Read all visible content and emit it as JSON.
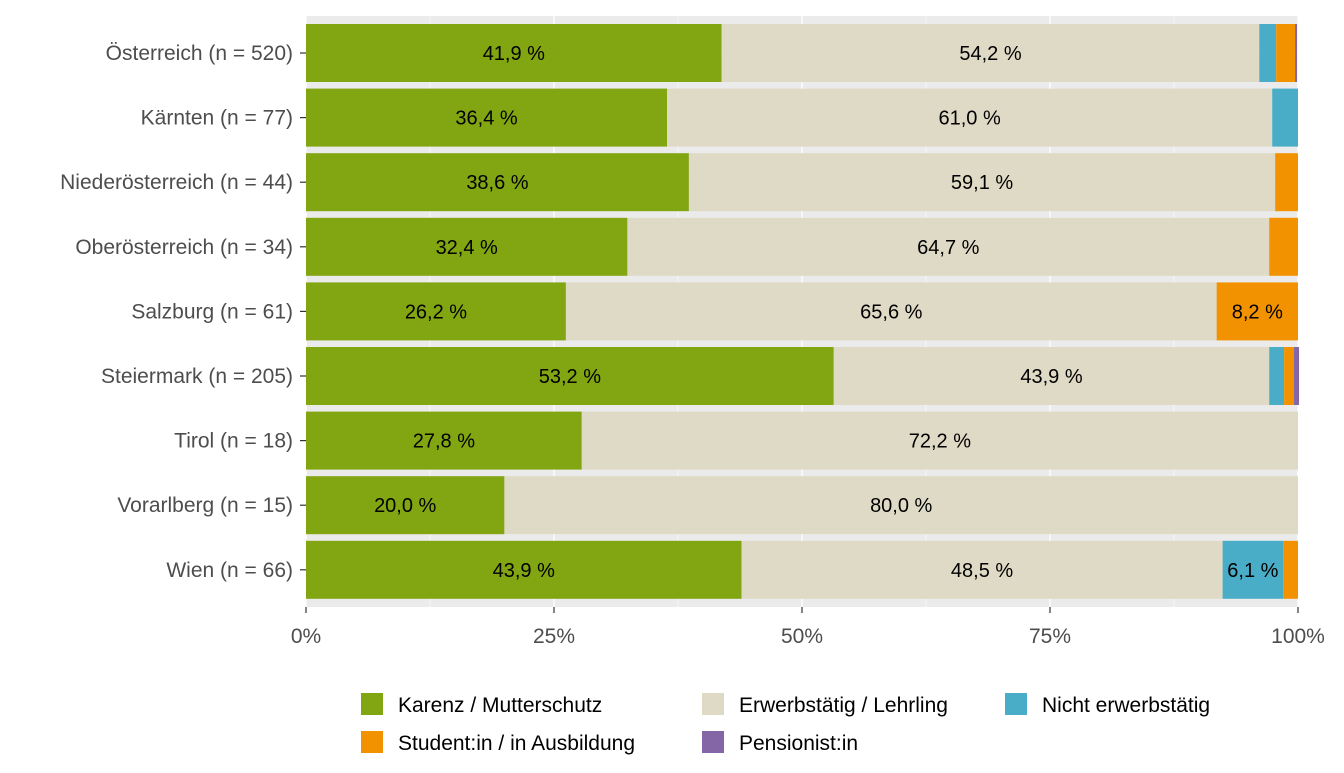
{
  "chart_data": {
    "type": "bar",
    "orientation": "horizontal",
    "stacked": true,
    "title": "",
    "xlabel": "",
    "ylabel": "",
    "xlim": [
      0,
      100
    ],
    "x_ticks": [
      "0%",
      "25%",
      "50%",
      "75%",
      "100%"
    ],
    "grid": true,
    "legend_position": "bottom",
    "categories": [
      "Österreich (n = 520)",
      "Kärnten (n = 77)",
      "Niederösterreich (n = 44)",
      "Oberösterreich (n = 34)",
      "Salzburg (n = 61)",
      "Steiermark (n = 205)",
      "Tirol (n = 18)",
      "Vorarlberg (n = 15)",
      "Wien (n = 66)"
    ],
    "series": [
      {
        "name": "Karenz / Mutterschutz",
        "color": "#82a512",
        "values": [
          41.9,
          36.4,
          38.6,
          32.4,
          26.2,
          53.2,
          27.8,
          20.0,
          43.9
        ],
        "labels": [
          "41,9 %",
          "36,4 %",
          "38,6 %",
          "32,4 %",
          "26,2 %",
          "53,2 %",
          "27,8 %",
          "20,0 %",
          "43,9 %"
        ]
      },
      {
        "name": "Erwerbstätig / Lehrling",
        "color": "#dedac5",
        "values": [
          54.2,
          61.0,
          59.1,
          64.7,
          65.6,
          43.9,
          72.2,
          80.0,
          48.5
        ],
        "labels": [
          "54,2 %",
          "61,0 %",
          "59,1 %",
          "64,7 %",
          "65,6 %",
          "43,9 %",
          "72,2 %",
          "80,0 %",
          "48,5 %"
        ]
      },
      {
        "name": "Nicht erwerbstätig",
        "color": "#4aadc7",
        "values": [
          1.7,
          2.6,
          0.0,
          0.0,
          0.0,
          1.5,
          0.0,
          0.0,
          6.1
        ],
        "labels": [
          "",
          "",
          "",
          "",
          "",
          "",
          "",
          "",
          "6,1 %"
        ]
      },
      {
        "name": "Student:in / in Ausbildung",
        "color": "#f39200",
        "values": [
          1.9,
          0.0,
          2.3,
          2.9,
          8.2,
          1.0,
          0.0,
          0.0,
          1.5
        ],
        "labels": [
          "",
          "",
          "",
          "",
          "8,2 %",
          "",
          "",
          "",
          ""
        ]
      },
      {
        "name": "Pensionist:in",
        "color": "#8466a6",
        "values": [
          0.2,
          0.0,
          0.0,
          0.0,
          0.0,
          0.5,
          0.0,
          0.0,
          0.0
        ],
        "labels": [
          "",
          "",
          "",
          "",
          "",
          "",
          "",
          "",
          ""
        ]
      }
    ],
    "legend": {
      "row1": [
        "Karenz / Mutterschutz",
        "Erwerbstätig / Lehrling",
        "Nicht erwerbstätig"
      ],
      "row2": [
        "Student:in / in Ausbildung",
        "Pensionist:in"
      ]
    }
  }
}
